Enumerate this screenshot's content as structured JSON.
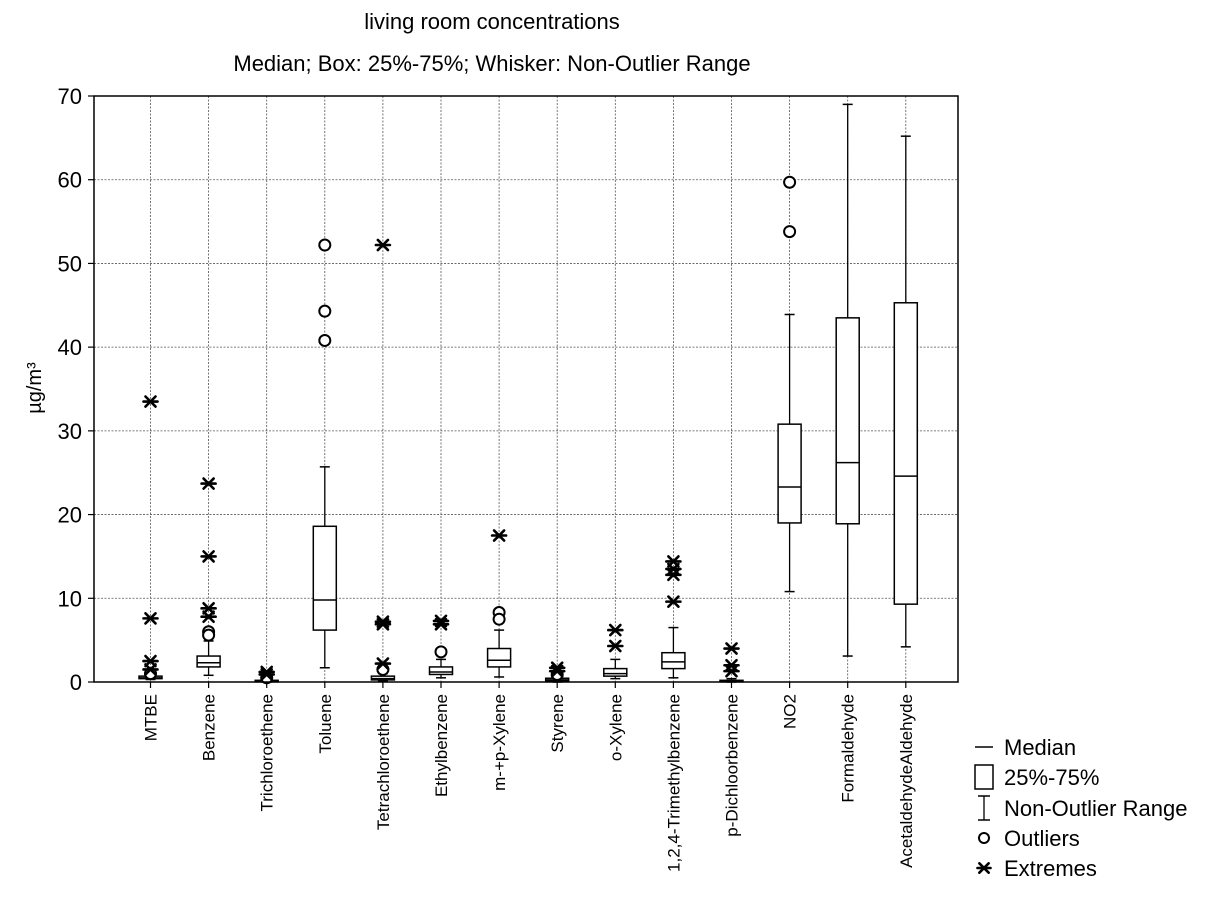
{
  "chart_data": {
    "type": "box",
    "title": "living room concentrations",
    "subtitle": "Median; Box: 25%-75%; Whisker: Non-Outlier Range",
    "ylabel": "µg/m³",
    "xlabel": "",
    "ylim": [
      0,
      70
    ],
    "yticks": [
      0,
      10,
      20,
      30,
      40,
      50,
      60,
      70
    ],
    "grid": true,
    "legend_position": "bottom-right",
    "legend": [
      {
        "symbol": "median",
        "label": "Median"
      },
      {
        "symbol": "box",
        "label": "25%-75%"
      },
      {
        "symbol": "whisker",
        "label": "Non-Outlier Range"
      },
      {
        "symbol": "outlier",
        "label": "Outliers"
      },
      {
        "symbol": "extreme",
        "label": "Extremes"
      }
    ],
    "categories": [
      "MTBE",
      "Benzene",
      "Trichloroethene",
      "Toluene",
      "Tetrachloroethene",
      "Ethylbenzene",
      "m-+p-Xylene",
      "Styrene",
      "o-Xylene",
      "1,2,4-Trimethylbenzene",
      "p-Dichloorbenzene",
      "NO2",
      "Formaldehyde",
      "AcetaldehydeAldehyde"
    ],
    "boxes": [
      {
        "whisker_low": 0.3,
        "q1": 0.4,
        "median": 0.5,
        "q3": 0.7,
        "whisker_high": 0.9,
        "outliers": [
          1.0
        ],
        "extremes": [
          33.5,
          7.6,
          2.5,
          1.5
        ]
      },
      {
        "whisker_low": 0.8,
        "q1": 1.8,
        "median": 2.3,
        "q3": 3.1,
        "whisker_high": 4.9,
        "outliers": [
          6.0,
          5.6
        ],
        "extremes": [
          23.7,
          15.0,
          8.8,
          7.8
        ]
      },
      {
        "whisker_low": 0.0,
        "q1": 0.05,
        "median": 0.1,
        "q3": 0.2,
        "whisker_high": 0.3,
        "outliers": [
          0.5
        ],
        "extremes": [
          1.2,
          0.9
        ]
      },
      {
        "whisker_low": 1.7,
        "q1": 6.2,
        "median": 9.8,
        "q3": 18.6,
        "whisker_high": 25.7,
        "outliers": [
          52.2,
          44.3,
          40.8
        ],
        "extremes": []
      },
      {
        "whisker_low": 0.1,
        "q1": 0.25,
        "median": 0.4,
        "q3": 0.7,
        "whisker_high": 1.0,
        "outliers": [
          1.5
        ],
        "extremes": [
          52.2,
          7.2,
          6.9,
          2.2
        ]
      },
      {
        "whisker_low": 0.5,
        "q1": 0.9,
        "median": 1.2,
        "q3": 1.8,
        "whisker_high": 2.7,
        "outliers": [
          3.6
        ],
        "extremes": [
          7.3,
          6.9
        ]
      },
      {
        "whisker_low": 0.6,
        "q1": 1.8,
        "median": 2.6,
        "q3": 4.0,
        "whisker_high": 6.2,
        "outliers": [
          8.3,
          7.5
        ],
        "extremes": [
          17.5
        ]
      },
      {
        "whisker_low": 0.0,
        "q1": 0.15,
        "median": 0.25,
        "q3": 0.45,
        "whisker_high": 0.7,
        "outliers": [
          0.9
        ],
        "extremes": [
          1.7,
          1.3
        ]
      },
      {
        "whisker_low": 0.4,
        "q1": 0.7,
        "median": 1.0,
        "q3": 1.6,
        "whisker_high": 2.7,
        "outliers": [],
        "extremes": [
          6.2,
          4.3
        ]
      },
      {
        "whisker_low": 0.5,
        "q1": 1.6,
        "median": 2.4,
        "q3": 3.5,
        "whisker_high": 6.5,
        "outliers": [],
        "extremes": [
          14.4,
          13.5,
          12.8,
          9.6
        ]
      },
      {
        "whisker_low": 0.0,
        "q1": 0.05,
        "median": 0.1,
        "q3": 0.2,
        "whisker_high": 0.4,
        "outliers": [],
        "extremes": [
          4.0,
          2.0,
          1.3
        ]
      },
      {
        "whisker_low": 10.8,
        "q1": 19.0,
        "median": 23.3,
        "q3": 30.8,
        "whisker_high": 43.9,
        "outliers": [
          59.7,
          53.8
        ],
        "extremes": []
      },
      {
        "whisker_low": 3.1,
        "q1": 18.9,
        "median": 26.2,
        "q3": 43.5,
        "whisker_high": 69.0,
        "outliers": [],
        "extremes": []
      },
      {
        "whisker_low": 4.2,
        "q1": 9.3,
        "median": 24.6,
        "q3": 45.3,
        "whisker_high": 65.2,
        "outliers": [],
        "extremes": []
      }
    ]
  }
}
